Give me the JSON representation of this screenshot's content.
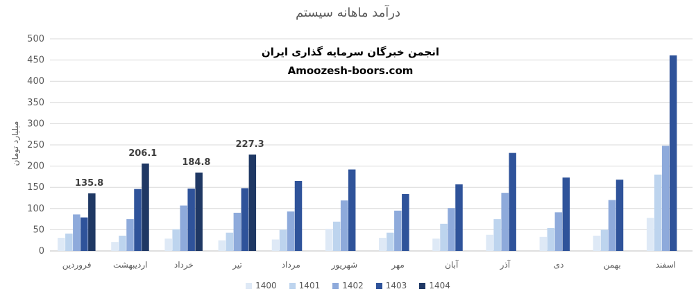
{
  "chart_data": {
    "type": "bar",
    "title": "درآمد ماهانه سیستم",
    "ylabel": "میلیارد تومان",
    "ylim": [
      0,
      500
    ],
    "yticks": [
      "0",
      "50",
      "100",
      "150",
      "200",
      "250",
      "300",
      "350",
      "400",
      "450",
      "500"
    ],
    "grid": true,
    "legend_position": "bottom",
    "categories": [
      "فروردین",
      "اردیبهشت",
      "خرداد",
      "تیر",
      "مرداد",
      "شهریور",
      "مهر",
      "آبان",
      "آذر",
      "دی",
      "بهمن",
      "اسفند"
    ],
    "series": [
      {
        "name": "1400",
        "color": "#dee9f6",
        "values": [
          31,
          21,
          29,
          25,
          27,
          52,
          31,
          29,
          38,
          33,
          36,
          78
        ]
      },
      {
        "name": "1401",
        "color": "#bdd4ee",
        "values": [
          41,
          36,
          51,
          43,
          50,
          69,
          43,
          64,
          75,
          54,
          50,
          180
        ]
      },
      {
        "name": "1402",
        "color": "#8eaadb",
        "values": [
          86,
          75,
          107,
          90,
          93,
          119,
          95,
          101,
          137,
          91,
          120,
          248
        ]
      },
      {
        "name": "1403",
        "color": "#2f539a",
        "values": [
          79,
          146,
          147,
          148,
          165,
          192,
          134,
          157,
          231,
          173,
          168,
          461
        ]
      },
      {
        "name": "1404",
        "color": "#1f3864",
        "values": [
          135.8,
          206.1,
          184.8,
          227.3,
          null,
          null,
          null,
          null,
          null,
          null,
          null,
          null
        ]
      }
    ],
    "data_labels": [
      "135.8",
      "206.1",
      "184.8",
      "227.3"
    ]
  },
  "watermark": {
    "line1": "انجمن خبرگان سرمایه گذاری ایران",
    "line2": "Amoozesh-boors.com"
  }
}
